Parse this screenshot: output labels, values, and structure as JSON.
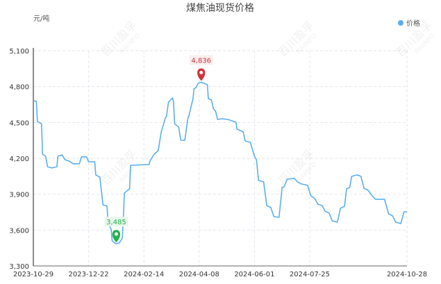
{
  "chart_data": {
    "type": "line",
    "title": "煤焦油现货价格",
    "ylabel": "元/吨",
    "ylim": [
      3300,
      5100
    ],
    "yticks": [
      "3,300",
      "3,600",
      "3,900",
      "4,200",
      "4,500",
      "4,800",
      "5,100"
    ],
    "ytick_values": [
      3300,
      3600,
      3900,
      4200,
      4500,
      4800,
      5100
    ],
    "xlim": [
      "2023-10-29",
      "2024-10-28"
    ],
    "xticks": [
      "2023-10-29",
      "2023-12-22",
      "2024-02-14",
      "2024-04-08",
      "2024-06-01",
      "2024-07-25",
      "2024-10-28"
    ],
    "grid": true,
    "legend_position": "top-right",
    "series": [
      {
        "name": "价格",
        "color": "#5aaef0",
        "points": [
          [
            "2023-10-29",
            4682
          ],
          [
            "2023-11-01",
            4676
          ],
          [
            "2023-11-02",
            4508
          ],
          [
            "2023-11-06",
            4490
          ],
          [
            "2023-11-07",
            4235
          ],
          [
            "2023-11-10",
            4217
          ],
          [
            "2023-11-12",
            4130
          ],
          [
            "2023-11-16",
            4119
          ],
          [
            "2023-11-21",
            4130
          ],
          [
            "2023-11-22",
            4217
          ],
          [
            "2023-11-26",
            4229
          ],
          [
            "2023-11-29",
            4188
          ],
          [
            "2023-12-03",
            4177
          ],
          [
            "2023-12-07",
            4154
          ],
          [
            "2023-12-13",
            4154
          ],
          [
            "2023-12-15",
            4212
          ],
          [
            "2023-12-20",
            4212
          ],
          [
            "2023-12-22",
            4171
          ],
          [
            "2023-12-28",
            4171
          ],
          [
            "2023-12-29",
            4061
          ],
          [
            "2024-01-02",
            4043
          ],
          [
            "2024-01-05",
            3811
          ],
          [
            "2024-01-09",
            3800
          ],
          [
            "2024-01-10",
            3654
          ],
          [
            "2024-01-13",
            3608
          ],
          [
            "2024-01-14",
            3509
          ],
          [
            "2024-01-18",
            3485
          ],
          [
            "2024-01-21",
            3492
          ],
          [
            "2024-01-24",
            3532
          ],
          [
            "2024-01-26",
            3910
          ],
          [
            "2024-01-31",
            3945
          ],
          [
            "2024-02-01",
            4142
          ],
          [
            "2024-02-19",
            4148
          ],
          [
            "2024-02-20",
            4177
          ],
          [
            "2024-02-24",
            4235
          ],
          [
            "2024-02-28",
            4264
          ],
          [
            "2024-03-02",
            4421
          ],
          [
            "2024-03-06",
            4537
          ],
          [
            "2024-03-07",
            4548
          ],
          [
            "2024-03-09",
            4670
          ],
          [
            "2024-03-13",
            4705
          ],
          [
            "2024-03-14",
            4665
          ],
          [
            "2024-03-15",
            4490
          ],
          [
            "2024-03-19",
            4461
          ],
          [
            "2024-03-21",
            4351
          ],
          [
            "2024-03-25",
            4351
          ],
          [
            "2024-03-28",
            4537
          ],
          [
            "2024-03-29",
            4554
          ],
          [
            "2024-04-02",
            4699
          ],
          [
            "2024-04-03",
            4781
          ],
          [
            "2024-04-05",
            4792
          ],
          [
            "2024-04-07",
            4827
          ],
          [
            "2024-04-10",
            4836
          ],
          [
            "2024-04-16",
            4816
          ],
          [
            "2024-04-17",
            4699
          ],
          [
            "2024-04-20",
            4688
          ],
          [
            "2024-04-22",
            4612
          ],
          [
            "2024-04-24",
            4595
          ],
          [
            "2024-04-26",
            4525
          ],
          [
            "2024-04-30",
            4531
          ],
          [
            "2024-05-06",
            4525
          ],
          [
            "2024-05-14",
            4502
          ],
          [
            "2024-05-15",
            4444
          ],
          [
            "2024-05-21",
            4421
          ],
          [
            "2024-05-23",
            4345
          ],
          [
            "2024-05-28",
            4334
          ],
          [
            "2024-06-01",
            4217
          ],
          [
            "2024-06-03",
            4188
          ],
          [
            "2024-06-05",
            4014
          ],
          [
            "2024-06-10",
            4003
          ],
          [
            "2024-06-13",
            3805
          ],
          [
            "2024-06-17",
            3788
          ],
          [
            "2024-06-20",
            3712
          ],
          [
            "2024-06-25",
            3707
          ],
          [
            "2024-06-28",
            3956
          ],
          [
            "2024-06-30",
            3962
          ],
          [
            "2024-07-03",
            4026
          ],
          [
            "2024-07-10",
            4032
          ],
          [
            "2024-07-13",
            4003
          ],
          [
            "2024-07-17",
            3985
          ],
          [
            "2024-07-23",
            3974
          ],
          [
            "2024-07-26",
            3887
          ],
          [
            "2024-07-30",
            3863
          ],
          [
            "2024-08-02",
            3817
          ],
          [
            "2024-08-06",
            3805
          ],
          [
            "2024-08-09",
            3759
          ],
          [
            "2024-08-13",
            3741
          ],
          [
            "2024-08-16",
            3677
          ],
          [
            "2024-08-21",
            3666
          ],
          [
            "2024-08-24",
            3782
          ],
          [
            "2024-08-28",
            3800
          ],
          [
            "2024-08-30",
            3945
          ],
          [
            "2024-09-02",
            3956
          ],
          [
            "2024-09-04",
            4049
          ],
          [
            "2024-09-09",
            4061
          ],
          [
            "2024-09-13",
            4049
          ],
          [
            "2024-09-16",
            3950
          ],
          [
            "2024-09-20",
            3933
          ],
          [
            "2024-09-24",
            3887
          ],
          [
            "2024-09-27",
            3858
          ],
          [
            "2024-10-06",
            3858
          ],
          [
            "2024-10-10",
            3736
          ],
          [
            "2024-10-14",
            3718
          ],
          [
            "2024-10-17",
            3666
          ],
          [
            "2024-10-22",
            3654
          ],
          [
            "2024-10-25",
            3753
          ],
          [
            "2024-10-28",
            3753
          ]
        ]
      }
    ],
    "annotations": [
      {
        "label": "4,836",
        "date": "2024-04-10",
        "value": 4836,
        "type": "max",
        "color": "#d0343a"
      },
      {
        "label": "3,485",
        "date": "2024-01-18",
        "value": 3485,
        "type": "min",
        "color": "#22b24c"
      }
    ],
    "watermark": "百川盈孚 BAIINFO"
  }
}
